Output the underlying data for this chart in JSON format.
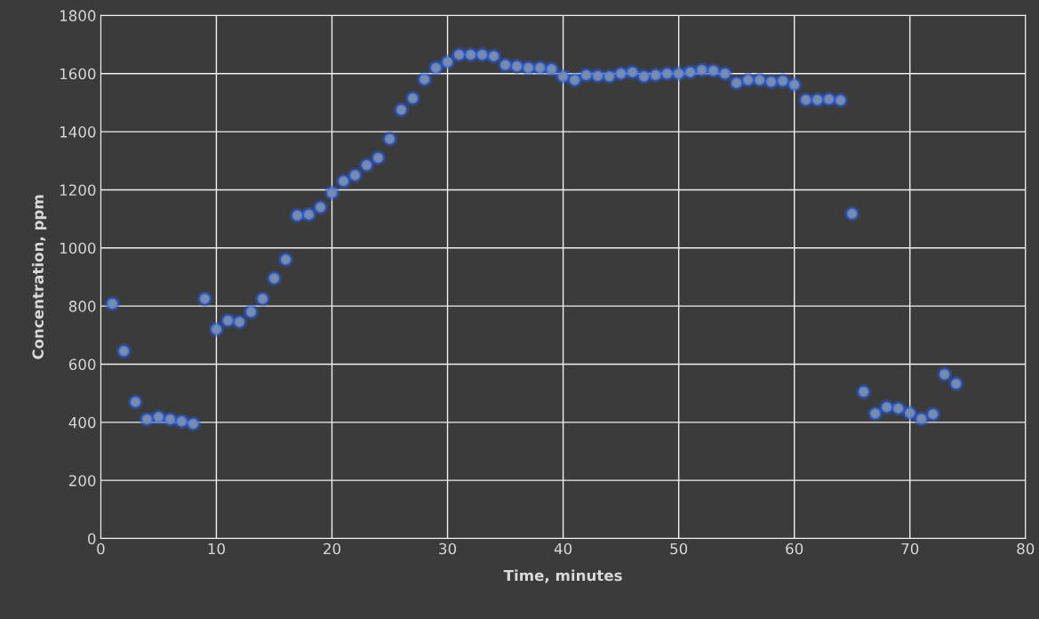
{
  "chart_data": {
    "type": "scatter",
    "xlabel": "Time, minutes",
    "ylabel": "Concentration, ppm",
    "x": [
      1,
      2,
      3,
      4,
      5,
      6,
      7,
      8,
      9,
      10,
      11,
      12,
      13,
      14,
      15,
      16,
      17,
      18,
      19,
      20,
      21,
      22,
      23,
      24,
      25,
      26,
      27,
      28,
      29,
      30,
      31,
      32,
      33,
      34,
      35,
      36,
      37,
      38,
      39,
      40,
      41,
      42,
      43,
      44,
      45,
      46,
      47,
      48,
      49,
      50,
      51,
      52,
      53,
      54,
      55,
      56,
      57,
      58,
      59,
      60,
      61,
      62,
      63,
      64,
      65,
      66,
      67,
      68,
      69,
      70,
      71,
      72,
      73,
      74
    ],
    "values": [
      808,
      645,
      470,
      410,
      418,
      410,
      403,
      395,
      825,
      720,
      750,
      745,
      780,
      825,
      895,
      960,
      1112,
      1115,
      1140,
      1190,
      1230,
      1250,
      1285,
      1310,
      1375,
      1475,
      1515,
      1580,
      1620,
      1640,
      1665,
      1665,
      1665,
      1660,
      1630,
      1625,
      1620,
      1620,
      1615,
      1590,
      1578,
      1595,
      1592,
      1590,
      1600,
      1605,
      1590,
      1595,
      1600,
      1600,
      1605,
      1612,
      1610,
      1600,
      1568,
      1578,
      1578,
      1572,
      1575,
      1562,
      1510,
      1510,
      1512,
      1508,
      1118,
      505,
      430,
      452,
      448,
      432,
      412,
      428,
      565,
      533
    ],
    "color": "#7c8ca3",
    "marker": "circle",
    "xlim": [
      0,
      80
    ],
    "xticks": [
      0,
      10,
      20,
      30,
      40,
      50,
      60,
      70,
      80
    ],
    "ylim": [
      0,
      1800
    ],
    "yticks": [
      0,
      200,
      400,
      600,
      800,
      1000,
      1200,
      1400,
      1600,
      1800
    ],
    "grid": true
  }
}
